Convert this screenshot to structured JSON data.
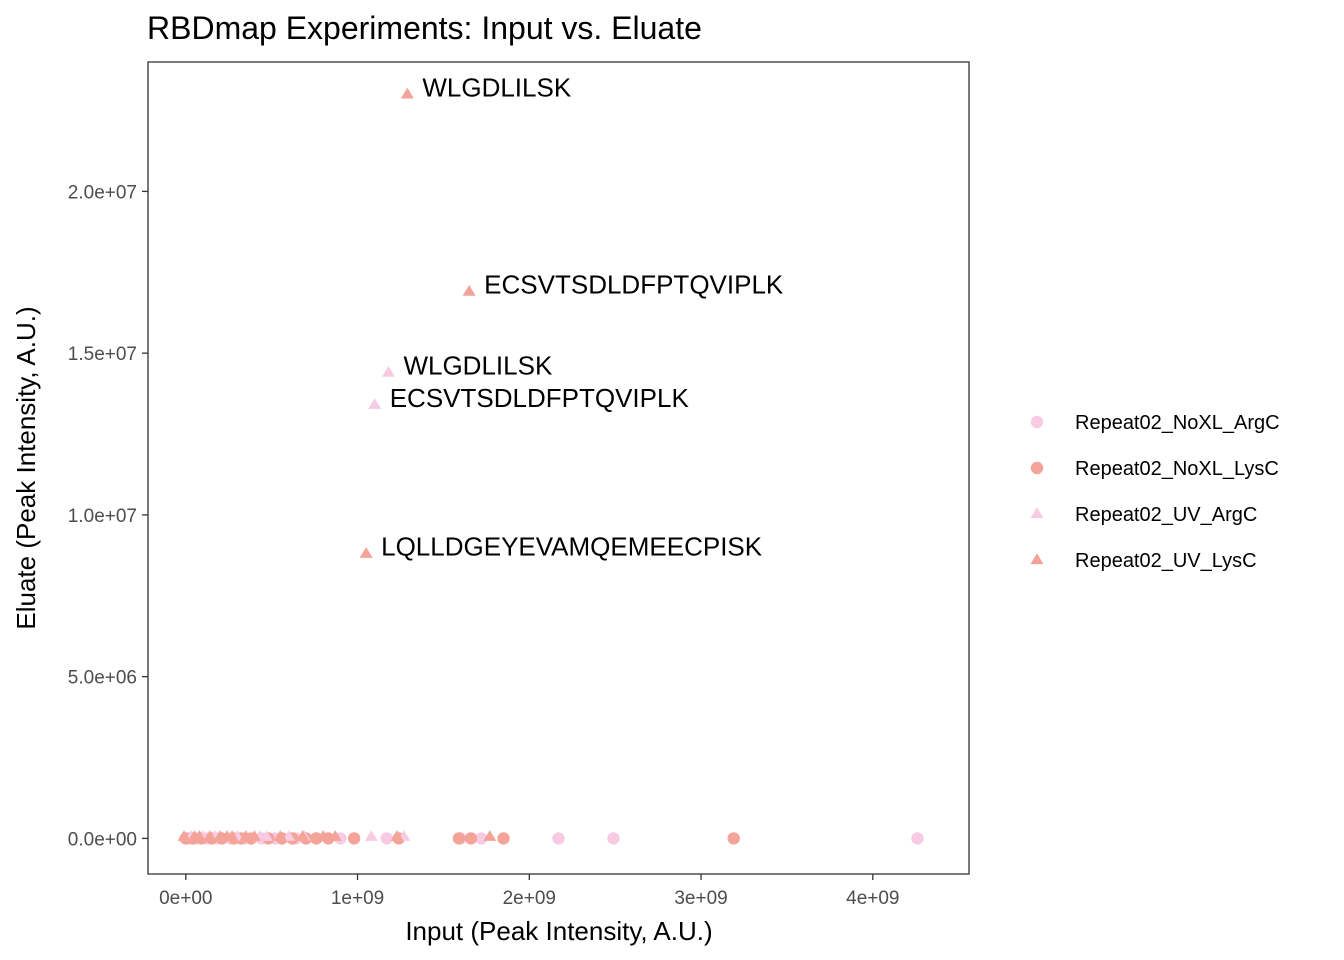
{
  "chart_data": {
    "type": "scatter",
    "title": "RBDmap Experiments: Input vs. Eluate",
    "xlabel": "Input (Peak Intensity, A.U.)",
    "ylabel": "Eluate (Peak Intensity, A.U.)",
    "xlim": [
      -220000000,
      4560000000
    ],
    "ylim": [
      -1100000,
      24000000
    ],
    "x_ticks": [
      0,
      1000000000,
      2000000000,
      3000000000,
      4000000000
    ],
    "x_tick_labels": [
      "0e+00",
      "1e+09",
      "2e+09",
      "3e+09",
      "4e+09"
    ],
    "y_ticks": [
      0,
      5000000,
      10000000,
      15000000,
      20000000
    ],
    "y_tick_labels": [
      "0.0e+00",
      "5.0e+06",
      "1.0e+07",
      "1.5e+07",
      "2.0e+07"
    ],
    "grid": false,
    "legend_position": "right",
    "series": [
      {
        "name": "Repeat02_NoXL_ArgC",
        "shape": "circle",
        "color": "#F7CBE4",
        "points": [
          {
            "x": 20000000,
            "y": 0
          },
          {
            "x": 60000000,
            "y": 0
          },
          {
            "x": 120000000,
            "y": 0
          },
          {
            "x": 180000000,
            "y": 0
          },
          {
            "x": 260000000,
            "y": 0
          },
          {
            "x": 340000000,
            "y": 0
          },
          {
            "x": 440000000,
            "y": 0
          },
          {
            "x": 520000000,
            "y": 0
          },
          {
            "x": 640000000,
            "y": 0
          },
          {
            "x": 760000000,
            "y": 0
          },
          {
            "x": 900000000,
            "y": 0
          },
          {
            "x": 1170000000,
            "y": 0
          },
          {
            "x": 1600000000,
            "y": 0
          },
          {
            "x": 1720000000,
            "y": 0
          },
          {
            "x": 2170000000,
            "y": 0
          },
          {
            "x": 2490000000,
            "y": 0
          },
          {
            "x": 4260000000,
            "y": 0
          }
        ]
      },
      {
        "name": "Repeat02_NoXL_LysC",
        "shape": "circle",
        "color": "#F4A398",
        "points": [
          {
            "x": 0,
            "y": 0
          },
          {
            "x": 40000000,
            "y": 0
          },
          {
            "x": 90000000,
            "y": 0
          },
          {
            "x": 150000000,
            "y": 0
          },
          {
            "x": 210000000,
            "y": 0
          },
          {
            "x": 280000000,
            "y": 0
          },
          {
            "x": 320000000,
            "y": 0
          },
          {
            "x": 380000000,
            "y": 0
          },
          {
            "x": 480000000,
            "y": 0
          },
          {
            "x": 560000000,
            "y": 0
          },
          {
            "x": 620000000,
            "y": 0
          },
          {
            "x": 700000000,
            "y": 0
          },
          {
            "x": 760000000,
            "y": 0
          },
          {
            "x": 830000000,
            "y": 0
          },
          {
            "x": 980000000,
            "y": 0
          },
          {
            "x": 1240000000,
            "y": 0
          },
          {
            "x": 1590000000,
            "y": 0
          },
          {
            "x": 1660000000,
            "y": 0
          },
          {
            "x": 1850000000,
            "y": 0
          },
          {
            "x": 3190000000,
            "y": 0
          }
        ]
      },
      {
        "name": "Repeat02_UV_ArgC",
        "shape": "triangle",
        "color": "#F7CBE4",
        "points": [
          {
            "x": 30000000,
            "y": 50000
          },
          {
            "x": 100000000,
            "y": 50000
          },
          {
            "x": 170000000,
            "y": 50000
          },
          {
            "x": 300000000,
            "y": 50000
          },
          {
            "x": 430000000,
            "y": 50000
          },
          {
            "x": 470000000,
            "y": 50000
          },
          {
            "x": 600000000,
            "y": 50000
          },
          {
            "x": 690000000,
            "y": 50000
          },
          {
            "x": 1080000000,
            "y": 50000
          },
          {
            "x": 1270000000,
            "y": 50000
          },
          {
            "x": 1180000000,
            "y": 14400000,
            "label": "WLGDLILSK"
          },
          {
            "x": 1100000000,
            "y": 13400000,
            "label": "ECSVTSDLDFPTQVIPLK"
          }
        ]
      },
      {
        "name": "Repeat02_UV_LysC",
        "shape": "triangle",
        "color": "#F4A398",
        "points": [
          {
            "x": -10000000,
            "y": 50000
          },
          {
            "x": 50000000,
            "y": 50000
          },
          {
            "x": 80000000,
            "y": 50000
          },
          {
            "x": 140000000,
            "y": 50000
          },
          {
            "x": 200000000,
            "y": 50000
          },
          {
            "x": 240000000,
            "y": 50000
          },
          {
            "x": 270000000,
            "y": 50000
          },
          {
            "x": 350000000,
            "y": 50000
          },
          {
            "x": 400000000,
            "y": 50000
          },
          {
            "x": 550000000,
            "y": 50000
          },
          {
            "x": 680000000,
            "y": 50000
          },
          {
            "x": 800000000,
            "y": 50000
          },
          {
            "x": 870000000,
            "y": 50000
          },
          {
            "x": 1230000000,
            "y": 50000
          },
          {
            "x": 1770000000,
            "y": 50000
          },
          {
            "x": 1290000000,
            "y": 23000000,
            "label": "WLGDLILSK"
          },
          {
            "x": 1650000000,
            "y": 16900000,
            "label": "ECSVTSDLDFPTQVIPLK"
          },
          {
            "x": 1050000000,
            "y": 8800000,
            "label": "LQLLDGEYEVAMQEMEECPISK"
          }
        ]
      }
    ]
  }
}
